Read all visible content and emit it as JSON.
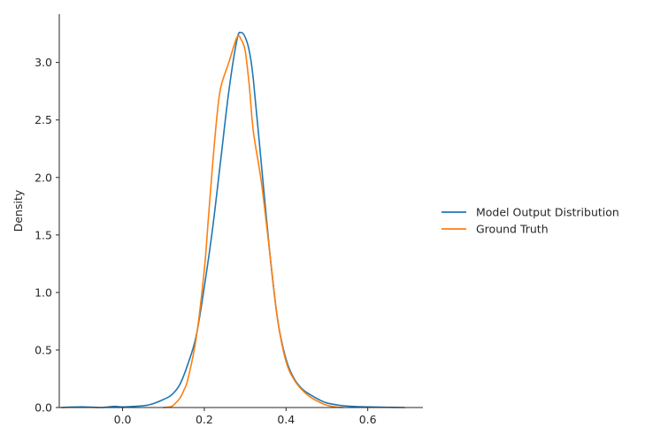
{
  "chart_data": {
    "type": "line",
    "title": "",
    "xlabel": "",
    "ylabel": "Density",
    "xlim": [
      -0.155,
      0.735
    ],
    "ylim": [
      0,
      3.42
    ],
    "x_ticks": [
      0.0,
      0.2,
      0.4,
      0.6
    ],
    "x_tick_labels": [
      "0.0",
      "0.2",
      "0.4",
      "0.6"
    ],
    "y_ticks": [
      0.0,
      0.5,
      1.0,
      1.5,
      2.0,
      2.5,
      3.0
    ],
    "y_tick_labels": [
      "0.0",
      "0.5",
      "1.0",
      "1.5",
      "2.0",
      "2.5",
      "3.0"
    ],
    "grid": false,
    "legend_position": "right, outside",
    "series": [
      {
        "name": "Model Output Distribution",
        "color": "#1f77b4",
        "x": [
          -0.15,
          -0.1,
          -0.05,
          -0.02,
          0.0,
          0.03,
          0.06,
          0.08,
          0.1,
          0.12,
          0.14,
          0.16,
          0.18,
          0.2,
          0.22,
          0.24,
          0.26,
          0.28,
          0.29,
          0.3,
          0.31,
          0.32,
          0.34,
          0.36,
          0.38,
          0.4,
          0.42,
          0.44,
          0.46,
          0.48,
          0.5,
          0.53,
          0.56,
          0.6,
          0.65,
          0.69
        ],
        "y": [
          0.0,
          0.005,
          0.0,
          0.01,
          0.005,
          0.01,
          0.02,
          0.04,
          0.07,
          0.11,
          0.2,
          0.38,
          0.62,
          1.05,
          1.55,
          2.15,
          2.75,
          3.2,
          3.26,
          3.22,
          3.1,
          2.85,
          2.1,
          1.35,
          0.75,
          0.42,
          0.25,
          0.16,
          0.11,
          0.07,
          0.04,
          0.02,
          0.01,
          0.005,
          0.002,
          0.0
        ]
      },
      {
        "name": "Ground Truth",
        "color": "#ff7f0e",
        "x": [
          0.1,
          0.12,
          0.13,
          0.14,
          0.15,
          0.16,
          0.18,
          0.2,
          0.21,
          0.22,
          0.23,
          0.24,
          0.26,
          0.28,
          0.29,
          0.3,
          0.31,
          0.32,
          0.34,
          0.36,
          0.38,
          0.4,
          0.42,
          0.44,
          0.46,
          0.48,
          0.5,
          0.52,
          0.54
        ],
        "y": [
          0.0,
          0.01,
          0.04,
          0.08,
          0.15,
          0.25,
          0.6,
          1.2,
          1.65,
          2.1,
          2.5,
          2.78,
          3.0,
          3.22,
          3.2,
          3.1,
          2.8,
          2.4,
          1.95,
          1.35,
          0.75,
          0.4,
          0.24,
          0.15,
          0.09,
          0.05,
          0.02,
          0.005,
          0.0
        ]
      }
    ]
  }
}
